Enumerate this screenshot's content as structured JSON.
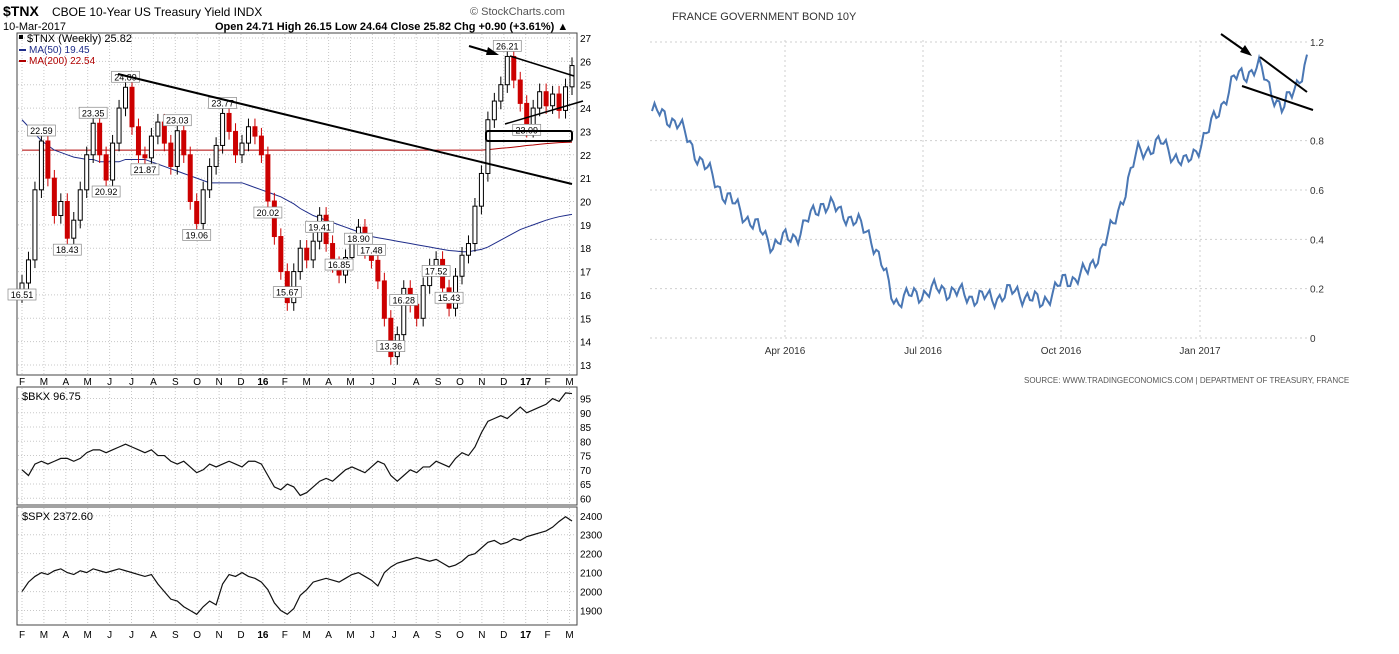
{
  "left_chart": {
    "header": {
      "symbol": "$TNX",
      "name": "CBOE 10-Year US Treasury Yield INDX",
      "date": "10-Mar-2017",
      "watermark": "© StockCharts.com",
      "ohlc_text": "Open 24.71  High 26.15  Low 24.64  Close 25.82  Chg +0.90 (+3.61%) ▲",
      "legend_tnx": "$TNX (Weekly) 25.82",
      "legend_ma50": "MA(50) 19.45",
      "legend_ma200": "MA(200) 22.54"
    },
    "month_labels": [
      "F",
      "M",
      "A",
      "M",
      "J",
      "J",
      "A",
      "S",
      "O",
      "N",
      "D",
      "16",
      "F",
      "M",
      "A",
      "M",
      "J",
      "J",
      "A",
      "S",
      "O",
      "N",
      "D",
      "17",
      "F",
      "M"
    ],
    "tnx_ticks": [
      "27",
      "26",
      "25",
      "24",
      "23",
      "22",
      "21",
      "20",
      "19",
      "18",
      "17",
      "16",
      "15",
      "14",
      "13"
    ],
    "price_labels": [
      "16.51",
      "22.59",
      "18.43",
      "23.35",
      "20.92",
      "24.89",
      "21.87",
      "23.03",
      "19.06",
      "23.77",
      "20.02",
      "15.67",
      "19.41",
      "16.85",
      "18.90",
      "17.48",
      "16.28",
      "13.36",
      "17.52",
      "15.43",
      "26.21",
      "23.09"
    ],
    "colors": {
      "up": "#000000",
      "down": "#cc0000",
      "ma50": "#1f2d8a",
      "ma200": "#b00000",
      "grid": "#c8c8c8"
    },
    "bkx": {
      "legend": "$BKX 96.75",
      "ticks": [
        "95",
        "90",
        "85",
        "80",
        "75",
        "70",
        "65",
        "60"
      ]
    },
    "spx": {
      "legend": "$SPX 2372.60",
      "ticks": [
        "2400",
        "2300",
        "2200",
        "2100",
        "2000",
        "1900"
      ]
    }
  },
  "chart_data": [
    {
      "type": "line",
      "title": "CBOE 10-Year US Treasury Yield INDX",
      "series": [
        {
          "name": "$TNX (Weekly)",
          "values": [
            16.51,
            17.5,
            20.5,
            22.59,
            21.0,
            19.4,
            20.0,
            18.43,
            19.2,
            20.5,
            22.0,
            23.35,
            22.0,
            20.92,
            22.5,
            24.0,
            24.89,
            23.2,
            22.0,
            21.87,
            22.8,
            23.4,
            22.5,
            21.5,
            23.03,
            22.0,
            20.0,
            19.06,
            20.5,
            21.5,
            22.4,
            23.77,
            23.0,
            22.0,
            22.5,
            23.2,
            22.8,
            22.0,
            20.02,
            18.5,
            17.0,
            15.67,
            17.0,
            18.0,
            17.5,
            18.3,
            19.41,
            18.2,
            17.3,
            16.85,
            17.6,
            18.2,
            18.9,
            17.9,
            17.48,
            16.6,
            15.0,
            13.36,
            14.3,
            16.28,
            15.6,
            15.0,
            16.4,
            17.2,
            17.52,
            16.3,
            15.43,
            16.8,
            17.7,
            18.2,
            19.8,
            21.2,
            23.5,
            24.3,
            25.0,
            26.21,
            25.2,
            24.2,
            23.09,
            24.0,
            24.7,
            24.1,
            24.6,
            23.9,
            24.91,
            25.82
          ]
        },
        {
          "name": "MA(50)",
          "values": [
            23.5,
            23.2,
            22.9,
            22.6,
            22.4,
            22.2,
            22.1,
            22.0,
            21.9,
            21.85,
            21.8,
            21.8,
            21.7,
            21.7,
            21.7,
            21.7,
            21.8,
            21.8,
            21.8,
            21.8,
            21.7,
            21.6,
            21.5,
            21.4,
            21.3,
            21.2,
            21.1,
            21.0,
            20.9,
            20.8,
            20.8,
            20.8,
            20.8,
            20.8,
            20.8,
            20.7,
            20.6,
            20.5,
            20.4,
            20.3,
            20.2,
            20.05,
            19.9,
            19.7,
            19.55,
            19.4,
            19.3,
            19.2,
            19.1,
            19.0,
            18.9,
            18.8,
            18.7,
            18.6,
            18.5,
            18.45,
            18.4,
            18.35,
            18.3,
            18.25,
            18.2,
            18.15,
            18.1,
            18.05,
            18.0,
            17.95,
            17.9,
            17.88,
            17.85,
            17.85,
            17.9,
            17.95,
            18.05,
            18.2,
            18.35,
            18.5,
            18.65,
            18.8,
            18.9,
            19.0,
            19.1,
            19.2,
            19.28,
            19.35,
            19.4,
            19.45
          ]
        },
        {
          "name": "MA(200)",
          "values": [
            22.2,
            22.2,
            22.2,
            22.2,
            22.2,
            22.2,
            22.2,
            22.2,
            22.2,
            22.2,
            22.2,
            22.2,
            22.2,
            22.2,
            22.2,
            22.2,
            22.2,
            22.2,
            22.2,
            22.2,
            22.2,
            22.2,
            22.2,
            22.2,
            22.2,
            22.2,
            22.2,
            22.2,
            22.2,
            22.2,
            22.2,
            22.2,
            22.2,
            22.2,
            22.2,
            22.2,
            22.2,
            22.2,
            22.2,
            22.2,
            22.2,
            22.2,
            22.2,
            22.2,
            22.2,
            22.2,
            22.2,
            22.2,
            22.2,
            22.2,
            22.2,
            22.2,
            22.2,
            22.2,
            22.2,
            22.2,
            22.2,
            22.2,
            22.2,
            22.2,
            22.2,
            22.2,
            22.2,
            22.2,
            22.2,
            22.2,
            22.2,
            22.2,
            22.2,
            22.2,
            22.2,
            22.2,
            22.22,
            22.25,
            22.28,
            22.3,
            22.33,
            22.36,
            22.4,
            22.42,
            22.45,
            22.48,
            22.5,
            22.52,
            22.53,
            22.54
          ]
        }
      ],
      "ylim": [
        12.5,
        27.3
      ]
    },
    {
      "type": "line",
      "series": [
        {
          "name": "$BKX",
          "values": [
            70,
            68,
            72,
            73,
            72,
            73,
            74,
            74,
            73,
            74,
            76,
            77,
            77,
            76,
            77,
            78,
            79,
            78,
            77,
            76,
            77,
            75,
            75,
            73,
            72,
            73,
            71,
            69,
            70,
            72,
            71,
            72,
            73,
            72,
            71,
            73,
            73,
            72,
            68,
            64,
            63,
            65,
            64,
            61,
            62,
            64,
            66,
            67,
            66,
            68,
            70,
            71,
            70,
            69,
            71,
            73,
            72,
            68,
            66,
            68,
            70,
            69,
            71,
            71,
            73,
            72,
            71,
            74,
            76,
            75,
            78,
            83,
            87,
            88,
            89,
            88,
            90,
            92,
            90,
            91,
            92,
            93,
            95,
            94,
            97,
            96.75
          ]
        }
      ],
      "ylim": [
        58,
        98
      ]
    },
    {
      "type": "line",
      "series": [
        {
          "name": "$SPX",
          "values": [
            2000,
            2050,
            2080,
            2100,
            2090,
            2110,
            2120,
            2100,
            2090,
            2110,
            2100,
            2120,
            2110,
            2100,
            2110,
            2120,
            2110,
            2100,
            2090,
            2080,
            2090,
            2040,
            2000,
            1960,
            1950,
            1920,
            1900,
            1880,
            1920,
            1950,
            1930,
            2040,
            2090,
            2080,
            2100,
            2080,
            2070,
            2050,
            2010,
            1940,
            1900,
            1880,
            1910,
            1980,
            2010,
            2050,
            2060,
            2070,
            2060,
            2050,
            2070,
            2090,
            2100,
            2080,
            2060,
            2030,
            2100,
            2130,
            2150,
            2160,
            2170,
            2180,
            2170,
            2160,
            2170,
            2150,
            2130,
            2140,
            2160,
            2190,
            2200,
            2230,
            2260,
            2270,
            2250,
            2260,
            2280,
            2270,
            2290,
            2300,
            2310,
            2320,
            2340,
            2370,
            2395,
            2372.6
          ]
        }
      ],
      "ylim": [
        1850,
        2420
      ]
    },
    {
      "type": "line",
      "title": "FRANCE GOVERNMENT BOND 10Y",
      "x": [
        "2016-02",
        "2016-02",
        "2016-03",
        "2016-03",
        "2016-04",
        "2016-04",
        "2016-05",
        "2016-05",
        "2016-06",
        "2016-06",
        "2016-07",
        "2016-07",
        "2016-08",
        "2016-08",
        "2016-09",
        "2016-09",
        "2016-10",
        "2016-10",
        "2016-11",
        "2016-11",
        "2016-12",
        "2016-12",
        "2017-01",
        "2017-01",
        "2017-02",
        "2017-02",
        "2017-03",
        "2017-03"
      ],
      "series": [
        {
          "name": "France 10Y",
          "values": [
            0.92,
            0.88,
            0.72,
            0.58,
            0.48,
            0.38,
            0.42,
            0.55,
            0.5,
            0.42,
            0.15,
            0.18,
            0.2,
            0.17,
            0.16,
            0.19,
            0.14,
            0.23,
            0.27,
            0.45,
            0.75,
            0.79,
            0.7,
            0.85,
            1.05,
            1.1,
            0.92,
            1.12
          ]
        }
      ],
      "ylim": [
        0,
        1.2
      ],
      "x_ticks": [
        "Apr 2016",
        "Jul 2016",
        "Oct 2016",
        "Jan 2017"
      ],
      "y_ticks": [
        "1.2",
        "0.8",
        "0.6",
        "0.4",
        "0.2",
        "0"
      ]
    }
  ],
  "right_chart": {
    "title": "FRANCE GOVERNMENT BOND 10Y",
    "source": "SOURCE: WWW.TRADINGECONOMICS.COM | DEPARTMENT OF TREASURY, FRANCE",
    "line_color": "#4a77b4"
  }
}
